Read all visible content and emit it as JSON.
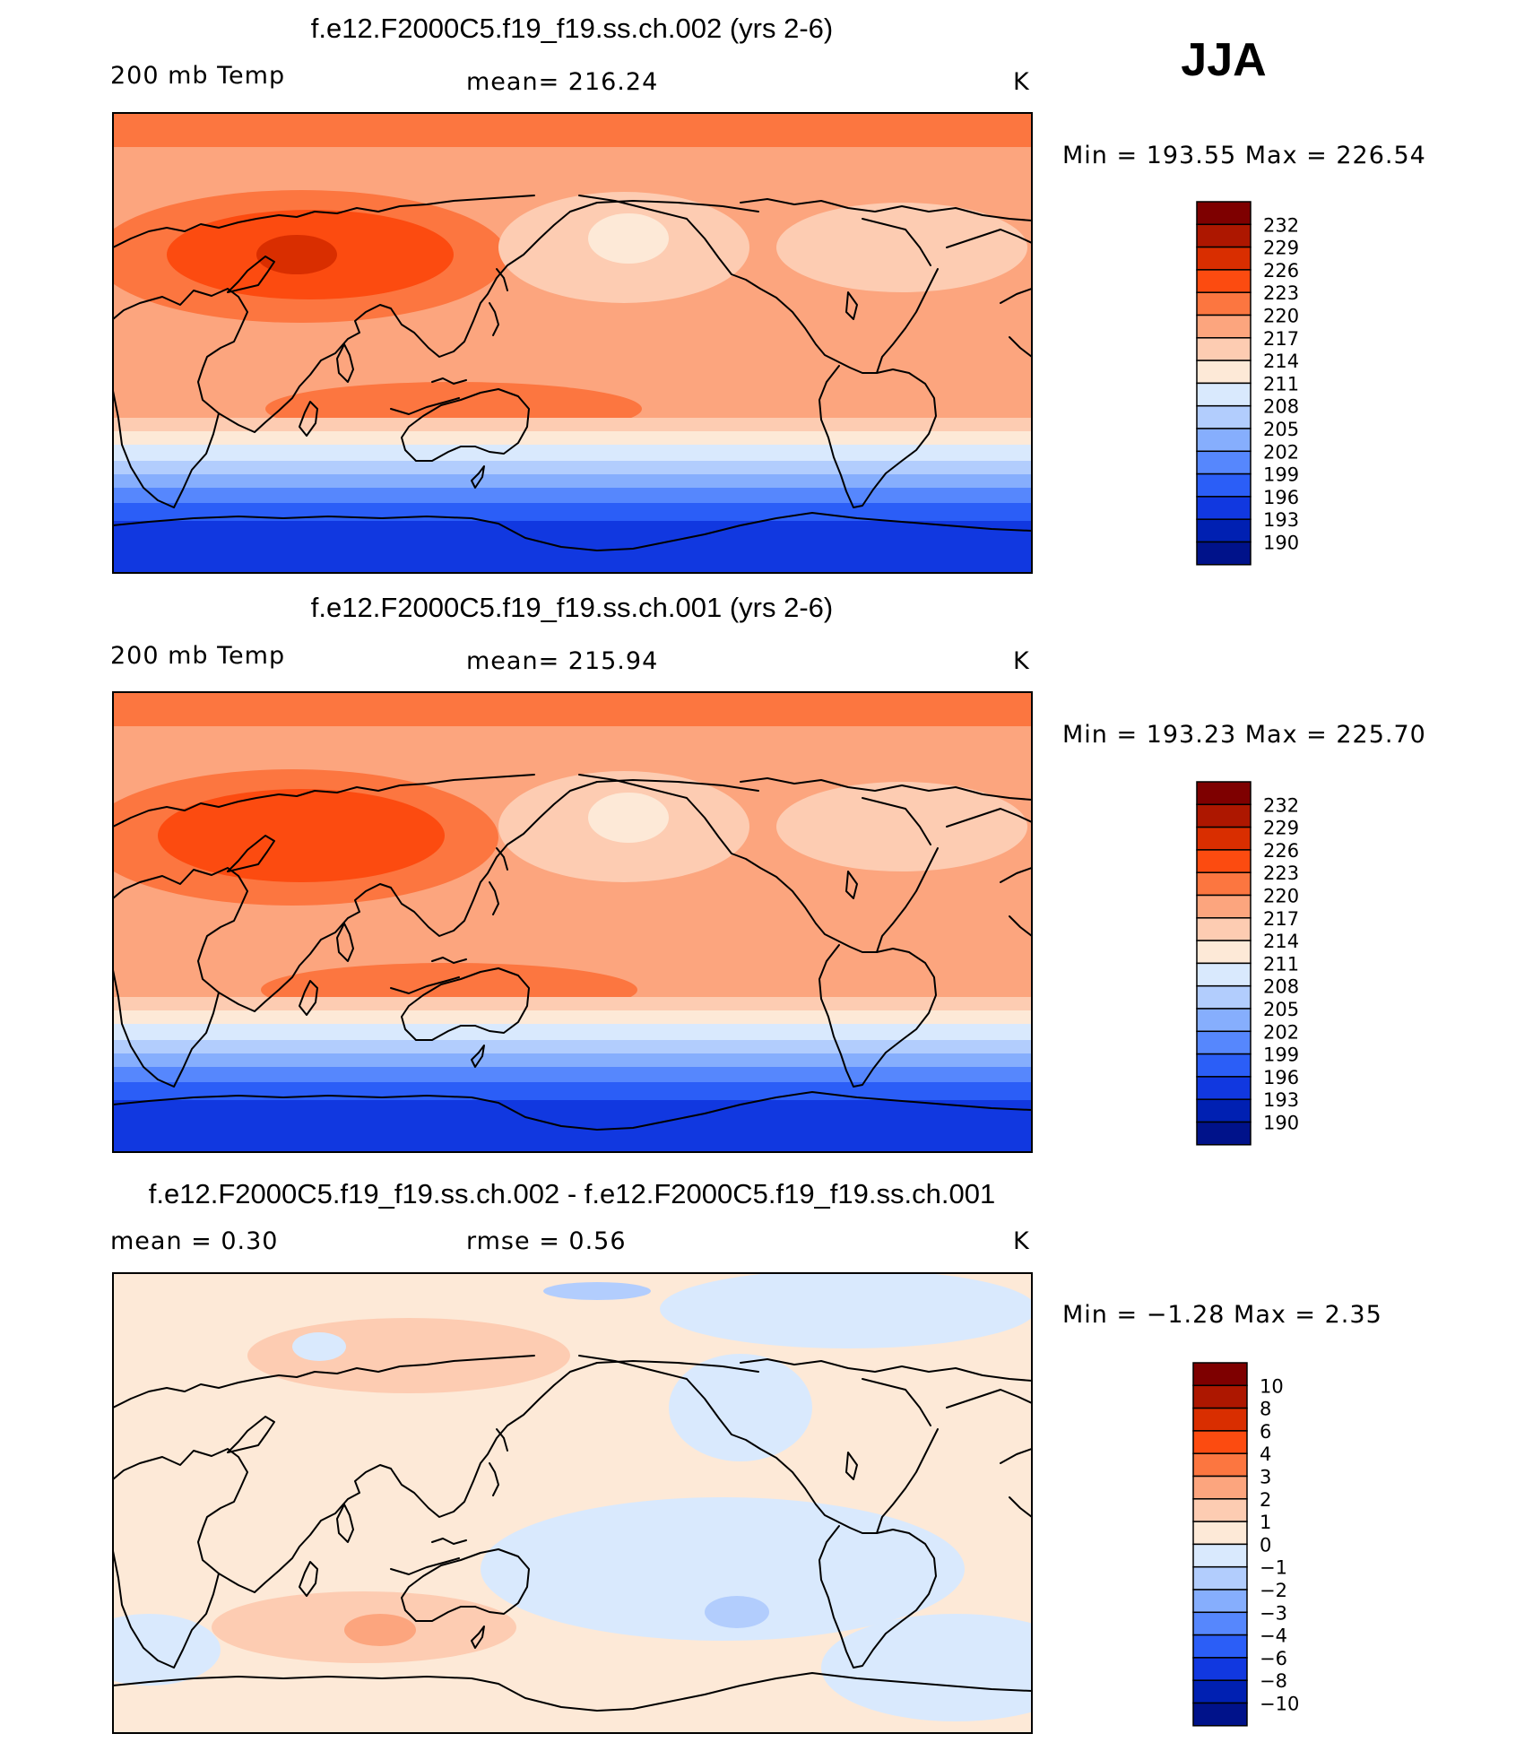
{
  "season": "JJA",
  "colors": {
    "warm": [
      "#7e0000",
      "#ad1700",
      "#d92e00",
      "#fc4b10",
      "#fc7640",
      "#fca57e",
      "#fdccb2",
      "#fde9d7"
    ],
    "cool": [
      "#d9e9fd",
      "#b2cdfd",
      "#86aefd",
      "#5687fd",
      "#2b5ef7",
      "#1138e0",
      "#0020b2",
      "#00128a"
    ],
    "diff": [
      "#7e0000",
      "#ad1700",
      "#d92e00",
      "#fc4b10",
      "#fc7640",
      "#fca57e",
      "#fdccb2",
      "#fde9d7",
      "#d9e9fd",
      "#b2cdfd",
      "#86aefd",
      "#5687fd",
      "#2b5ef7",
      "#1138e0",
      "#0020b2",
      "#00128a"
    ]
  },
  "chart_data": [
    {
      "type": "heatmap",
      "title": "f.e12.F2000C5.f19_f19.ss.ch.002 (yrs 2-6)",
      "left_label": "200 mb Temp",
      "center_label": "mean=  216.24",
      "units": "K",
      "min_max": "Min  =  193.55  Max  =  226.54",
      "min": 193.55,
      "max": 226.54,
      "mean": 216.24,
      "colorbar_levels": [
        "232",
        "229",
        "226",
        "223",
        "220",
        "217",
        "214",
        "211",
        "208",
        "205",
        "202",
        "199",
        "196",
        "193",
        "190"
      ]
    },
    {
      "type": "heatmap",
      "title": "f.e12.F2000C5.f19_f19.ss.ch.001 (yrs 2-6)",
      "left_label": "200 mb Temp",
      "center_label": "mean=  215.94",
      "units": "K",
      "min_max": "Min  =  193.23  Max  =  225.70",
      "min": 193.23,
      "max": 225.7,
      "mean": 215.94,
      "colorbar_levels": [
        "232",
        "229",
        "226",
        "223",
        "220",
        "217",
        "214",
        "211",
        "208",
        "205",
        "202",
        "199",
        "196",
        "193",
        "190"
      ]
    },
    {
      "type": "heatmap",
      "title": "f.e12.F2000C5.f19_f19.ss.ch.002 - f.e12.F2000C5.f19_f19.ss.ch.001",
      "left_label": "mean  =     0.30",
      "center_label": "rmse  =     0.56",
      "units": "K",
      "min_max": "Min  =    −1.28  Max  =      2.35",
      "min": -1.28,
      "max": 2.35,
      "mean": 0.3,
      "rmse": 0.56,
      "colorbar_levels": [
        "10",
        "8",
        "6",
        "4",
        "3",
        "2",
        "1",
        "0",
        "−1",
        "−2",
        "−3",
        "−4",
        "−6",
        "−8",
        "−10"
      ]
    }
  ]
}
